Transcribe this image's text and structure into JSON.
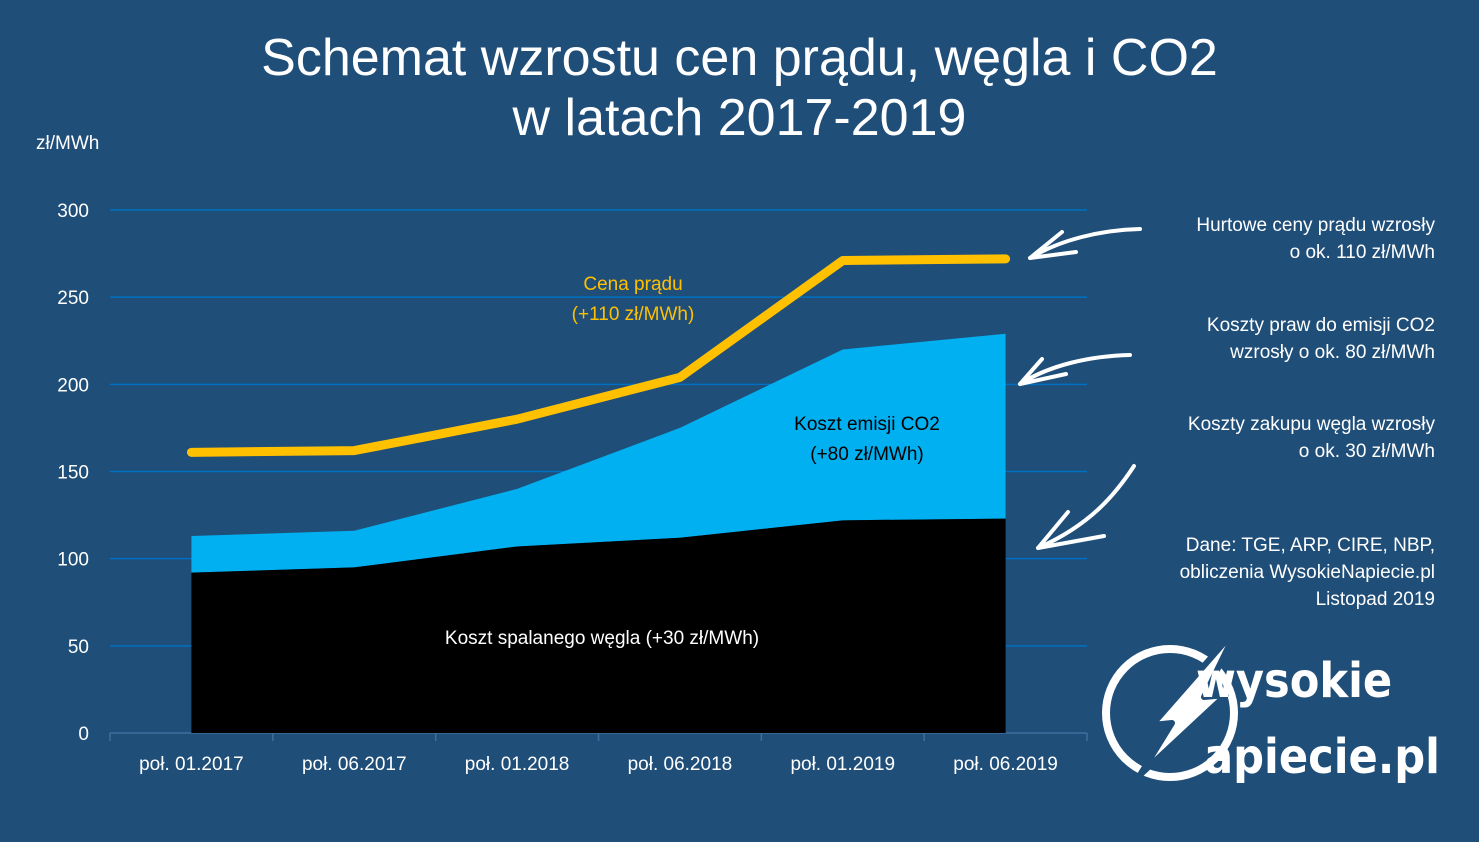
{
  "title": {
    "line1": "Schemat wzrostu cen prądu, węgla i CO2",
    "line2": "w latach 2017-2019"
  },
  "colors": {
    "background": "#1f4e79",
    "price_line": "#ffc000",
    "co2_area": "#00b0f0",
    "coal_area": "#000000",
    "grid": "#0070c0"
  },
  "chart_data": {
    "type": "area",
    "ylabel": "zł/MWh",
    "ylim": [
      0,
      300
    ],
    "yticks": [
      0,
      50,
      100,
      150,
      200,
      250,
      300
    ],
    "grid": true,
    "categories": [
      "poł. 01.2017",
      "poł. 06.2017",
      "poł. 01.2018",
      "poł. 06.2018",
      "poł. 01.2019",
      "poł. 06.2019"
    ],
    "series": [
      {
        "kind": "area",
        "values": [
          92,
          95,
          107,
          112,
          122,
          123
        ]
      },
      {
        "kind": "area-top",
        "values": [
          113,
          116,
          140,
          175,
          220,
          229
        ]
      },
      {
        "kind": "line",
        "values": [
          161,
          162,
          180,
          204,
          271,
          272
        ]
      }
    ],
    "annotations": {
      "price_label_1": "Cena prądu",
      "price_label_2": "(+110 zł/MWh)",
      "co2_label_1": "Koszt emisji CO2",
      "co2_label_2": "(+80 zł/MWh)",
      "coal_label": "Koszt spalanego węgla (+30 zł/MWh)"
    }
  },
  "notes": {
    "price_1": "Hurtowe ceny prądu wzrosły",
    "price_2": "o ok. 110 zł/MWh",
    "co2_1": "Koszty praw do emisji CO2",
    "co2_2": "wzrosły o ok. 80 zł/MWh",
    "coal_1": "Koszty zakupu węgla wzrosły",
    "coal_2": "o ok. 30 zł/MWh",
    "source_1": "Dane: TGE, ARP, CIRE, NBP,",
    "source_2": "obliczenia WysokieNapiecie.pl",
    "source_3": "Listopad 2019"
  },
  "logo": {
    "word1": "wysokie",
    "word2": "apiecie.pl",
    "initial1": "W",
    "initial2": "N"
  }
}
